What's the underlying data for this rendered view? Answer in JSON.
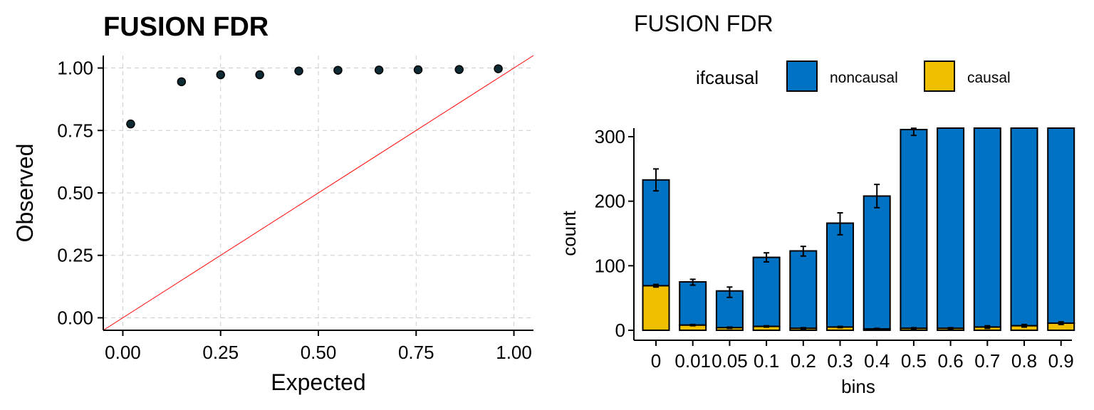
{
  "chart_data": [
    {
      "type": "scatter",
      "title": "FUSION FDR",
      "xlabel": "Expected",
      "ylabel": "Observed",
      "xlim": [
        -0.05,
        1.05
      ],
      "ylim": [
        -0.05,
        1.05
      ],
      "grid": true,
      "reference_line": "y = x",
      "reference_line_color": "#ff0000",
      "point_color": "#0d2a35",
      "x_ticks": [
        "0.00",
        "0.25",
        "0.50",
        "0.75",
        "1.00"
      ],
      "y_ticks": [
        "0.00",
        "0.25",
        "0.50",
        "0.75",
        "1.00"
      ],
      "points": [
        {
          "x": 0.02,
          "y": 0.776
        },
        {
          "x": 0.15,
          "y": 0.945
        },
        {
          "x": 0.25,
          "y": 0.973
        },
        {
          "x": 0.35,
          "y": 0.973
        },
        {
          "x": 0.45,
          "y": 0.988
        },
        {
          "x": 0.55,
          "y": 0.991
        },
        {
          "x": 0.655,
          "y": 0.992
        },
        {
          "x": 0.755,
          "y": 0.993
        },
        {
          "x": 0.86,
          "y": 0.994
        },
        {
          "x": 0.96,
          "y": 0.997
        }
      ]
    },
    {
      "type": "bar",
      "stacked": true,
      "title": "FUSION FDR",
      "xlabel": "bins",
      "ylabel": "count",
      "ylim": [
        0,
        313
      ],
      "y_ticks": [
        "0",
        "100",
        "200",
        "300"
      ],
      "legend_title": "ifcausal",
      "legend_position": "top",
      "categories": [
        "0",
        "0.01",
        "0.05",
        "0.1",
        "0.2",
        "0.3",
        "0.4",
        "0.5",
        "0.6",
        "0.7",
        "0.8",
        "0.9"
      ],
      "series": [
        {
          "name": "noncausal",
          "color": "#0072c3",
          "values": [
            164,
            67,
            57,
            107,
            120,
            161,
            206,
            308,
            320,
            320,
            320,
            320
          ]
        },
        {
          "name": "causal",
          "color": "#f0c000",
          "values": [
            69,
            8,
            4,
            6,
            3,
            5,
            2,
            3,
            3,
            5,
            7,
            11
          ]
        }
      ],
      "error_bars": {
        "total": [
          [
            216,
            250
          ],
          [
            70,
            79
          ],
          [
            51,
            67
          ],
          [
            106,
            120
          ],
          [
            115,
            130
          ],
          [
            148,
            182
          ],
          [
            190,
            226
          ],
          [
            302,
            313
          ],
          null,
          null,
          null,
          null
        ],
        "causal": [
          [
            67,
            71
          ],
          [
            7,
            9
          ],
          [
            3,
            5
          ],
          [
            5,
            7
          ],
          [
            2,
            4
          ],
          [
            4,
            6
          ],
          [
            1,
            3
          ],
          [
            2,
            4
          ],
          [
            2,
            4
          ],
          [
            3,
            7
          ],
          [
            5,
            9
          ],
          [
            9,
            13
          ]
        ]
      }
    }
  ]
}
